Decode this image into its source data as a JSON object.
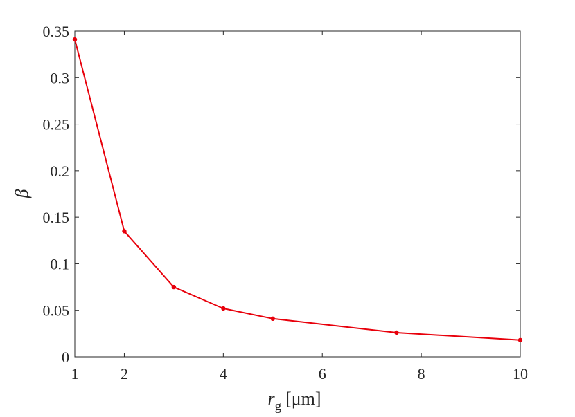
{
  "chart_data": {
    "type": "line",
    "title": "",
    "xlabel": {
      "symbol": "r",
      "subscript": "g",
      "unit": "[μm]"
    },
    "ylabel": "β",
    "xlim": [
      1,
      10
    ],
    "ylim": [
      0,
      0.35
    ],
    "xticks": [
      1,
      2,
      4,
      6,
      8,
      10
    ],
    "yticks": [
      0,
      0.05,
      0.1,
      0.15,
      0.2,
      0.25,
      0.3,
      0.35
    ],
    "xtick_labels": [
      "1",
      "2",
      "4",
      "6",
      "8",
      "10"
    ],
    "ytick_labels": [
      "0",
      "0.05",
      "0.1",
      "0.15",
      "0.2",
      "0.25",
      "0.3",
      "0.35"
    ],
    "grid": false,
    "series": [
      {
        "color": "#e8000b",
        "marker": "dot",
        "x": [
          1,
          2,
          3,
          4,
          5,
          7.5,
          10
        ],
        "y": [
          0.341,
          0.135,
          0.075,
          0.052,
          0.041,
          0.026,
          0.018
        ]
      }
    ]
  }
}
